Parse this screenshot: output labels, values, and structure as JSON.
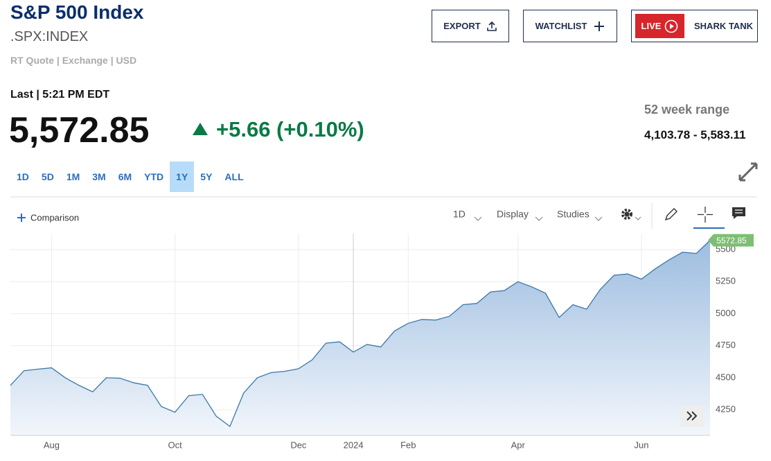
{
  "header": {
    "title": "S&P 500 Index",
    "symbol": ".SPX:INDEX",
    "quote_meta": "RT Quote | Exchange | USD"
  },
  "actions": {
    "export": "EXPORT",
    "watchlist": "WATCHLIST",
    "live": "LIVE",
    "show": "SHARK TANK"
  },
  "quote": {
    "last": "Last | 5:21 PM EDT",
    "price": "5,572.85",
    "change": "+5.66 (+0.10%)",
    "range_title": "52 week range",
    "range": "4,103.78 - 5,583.11"
  },
  "periods": [
    "1D",
    "5D",
    "1M",
    "3M",
    "6M",
    "YTD",
    "1Y",
    "5Y",
    "ALL"
  ],
  "active_period": 6,
  "toolbar": {
    "comparison": "Comparison",
    "interval": "1D",
    "display": "Display",
    "studies": "Studies"
  },
  "chart_data": {
    "type": "area",
    "categories": [
      null,
      null,
      null,
      "Aug",
      null,
      null,
      null,
      null,
      null,
      null,
      null,
      null,
      "Oct",
      null,
      null,
      null,
      null,
      null,
      null,
      null,
      null,
      "Dec",
      null,
      null,
      null,
      "2024",
      null,
      null,
      null,
      "Feb",
      null,
      null,
      null,
      null,
      null,
      null,
      null,
      "Apr",
      null,
      null,
      null,
      null,
      null,
      null,
      null,
      null,
      "Jun",
      null,
      null,
      null,
      null,
      null
    ],
    "values": [
      4440,
      4555,
      4567,
      4577,
      4500,
      4440,
      4390,
      4500,
      4496,
      4460,
      4440,
      4275,
      4230,
      4360,
      4370,
      4200,
      4120,
      4380,
      4500,
      4540,
      4550,
      4570,
      4640,
      4770,
      4780,
      4700,
      4760,
      4740,
      4865,
      4925,
      4955,
      4950,
      4980,
      5070,
      5080,
      5170,
      5180,
      5250,
      5210,
      5160,
      4970,
      5070,
      5035,
      5190,
      5300,
      5310,
      5270,
      5350,
      5420,
      5480,
      5470,
      5572.85
    ],
    "color": "#3a77a8",
    "ylim": [
      4050,
      5625
    ],
    "yticks": [
      4250,
      4500,
      4750,
      5000,
      5250,
      5500
    ],
    "grid": true,
    "last_label_color": "#7dbf72"
  }
}
